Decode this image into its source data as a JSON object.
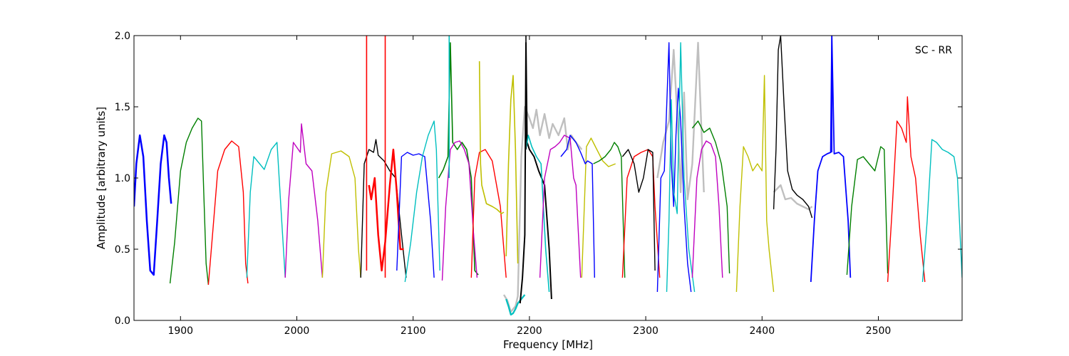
{
  "chart_data": {
    "type": "line",
    "title": "",
    "annotation": "SC - RR",
    "xlabel": "Frequency [MHz]",
    "ylabel": "Amplitude [arbitrary units]",
    "xlim": [
      1860,
      2572
    ],
    "ylim": [
      0.0,
      2.0
    ],
    "xticks": [
      1900,
      2000,
      2100,
      2200,
      2300,
      2400,
      2500
    ],
    "xtick_labels": [
      "1900",
      "2000",
      "2100",
      "2200",
      "2300",
      "2400",
      "2500"
    ],
    "yticks": [
      0.0,
      0.5,
      1.0,
      1.5,
      2.0
    ],
    "ytick_labels": [
      "0.0",
      "0.5",
      "1.0",
      "1.5",
      "2.0"
    ],
    "grid": false,
    "series": [
      {
        "color": "#bfbfbf",
        "width": 2.4,
        "x": [
          2178,
          2181,
          2184,
          2186,
          2188,
          2190,
          2193,
          2196,
          2200,
          2203,
          2206,
          2209,
          2213,
          2217,
          2220,
          2225,
          2230,
          2233,
          2236,
          2240,
          2245
        ],
        "y": [
          0.18,
          0.14,
          0.06,
          0.08,
          0.1,
          0.17,
          1.15,
          1.5,
          1.42,
          1.35,
          1.48,
          1.3,
          1.45,
          1.28,
          1.38,
          1.3,
          1.42,
          1.2,
          1.3,
          1.25,
          1.2
        ]
      },
      {
        "color": "#bfbfbf",
        "width": 2.4,
        "x": [
          2310,
          2315,
          2320,
          2324,
          2328,
          2330,
          2333,
          2336,
          2340,
          2345,
          2350
        ],
        "y": [
          1.0,
          1.25,
          1.4,
          1.9,
          1.3,
          0.9,
          1.6,
          0.85,
          1.1,
          1.95,
          0.9
        ]
      },
      {
        "color": "#bfbfbf",
        "width": 2.4,
        "x": [
          2410,
          2416,
          2420,
          2425,
          2430,
          2435,
          2440,
          2443
        ],
        "y": [
          0.9,
          0.95,
          0.85,
          0.86,
          0.82,
          0.8,
          0.78,
          0.8
        ]
      },
      {
        "color": "#0000ff",
        "width": 2.5,
        "x": [
          1860,
          1862,
          1865,
          1868,
          1871,
          1874,
          1877,
          1880,
          1883,
          1886,
          1888,
          1890,
          1892
        ],
        "y": [
          0.8,
          1.1,
          1.3,
          1.15,
          0.7,
          0.35,
          0.32,
          0.7,
          1.1,
          1.3,
          1.25,
          1.0,
          0.82
        ]
      },
      {
        "color": "#007f00",
        "width": 1.4,
        "x": [
          1891,
          1895,
          1900,
          1905,
          1910,
          1915,
          1918,
          1920,
          1922,
          1924
        ],
        "y": [
          0.26,
          0.55,
          1.05,
          1.25,
          1.35,
          1.42,
          1.4,
          0.9,
          0.4,
          0.25
        ]
      },
      {
        "color": "#ff0000",
        "width": 1.4,
        "x": [
          1924,
          1928,
          1932,
          1938,
          1944,
          1950,
          1954,
          1956,
          1958
        ],
        "y": [
          0.25,
          0.65,
          1.05,
          1.2,
          1.26,
          1.22,
          0.9,
          0.4,
          0.26
        ]
      },
      {
        "color": "#00bfbf",
        "width": 1.4,
        "x": [
          1957,
          1960,
          1963,
          1968,
          1972,
          1978,
          1983,
          1987,
          1990
        ],
        "y": [
          0.3,
          0.9,
          1.15,
          1.1,
          1.06,
          1.2,
          1.25,
          0.7,
          0.3
        ]
      },
      {
        "color": "#bf00bf",
        "width": 1.4,
        "x": [
          1990,
          1993,
          1997,
          2003,
          2004,
          2008,
          2013,
          2018,
          2022
        ],
        "y": [
          0.3,
          0.85,
          1.25,
          1.18,
          1.38,
          1.1,
          1.05,
          0.7,
          0.3
        ]
      },
      {
        "color": "#bfbf00",
        "width": 1.4,
        "x": [
          2022,
          2025,
          2030,
          2038,
          2045,
          2050,
          2053,
          2055
        ],
        "y": [
          0.3,
          0.9,
          1.17,
          1.19,
          1.15,
          1.0,
          0.5,
          0.3
        ]
      },
      {
        "color": "#000000",
        "width": 1.4,
        "x": [
          2055,
          2058,
          2062,
          2066,
          2068,
          2070,
          2075,
          2080,
          2085,
          2090,
          2094
        ],
        "y": [
          0.3,
          1.1,
          1.2,
          1.18,
          1.27,
          1.16,
          1.12,
          1.05,
          1.0,
          0.6,
          0.3
        ]
      },
      {
        "color": "#ff0000",
        "width": 2.5,
        "x": [
          2062,
          2064,
          2067,
          2070,
          2073,
          2076,
          2080,
          2083,
          2086,
          2089,
          2092
        ],
        "y": [
          0.95,
          0.85,
          1.0,
          0.6,
          0.35,
          0.55,
          0.95,
          1.2,
          0.9,
          0.5,
          0.5
        ]
      },
      {
        "color": "#0000ff",
        "width": 1.4,
        "x": [
          2086,
          2090,
          2095,
          2100,
          2105,
          2110,
          2115,
          2118
        ],
        "y": [
          0.35,
          1.15,
          1.18,
          1.16,
          1.17,
          1.15,
          0.7,
          0.3
        ]
      },
      {
        "color": "#00bfbf",
        "width": 1.4,
        "x": [
          2093,
          2098,
          2103,
          2108,
          2113,
          2118,
          2120,
          2123
        ],
        "y": [
          0.27,
          0.55,
          0.9,
          1.15,
          1.3,
          1.4,
          1.2,
          0.35
        ]
      },
      {
        "color": "#007f00",
        "width": 1.6,
        "x": [
          2122,
          2126,
          2130,
          2132,
          2134,
          2138,
          2142,
          2146,
          2150,
          2153,
          2156
        ],
        "y": [
          1.0,
          1.06,
          1.15,
          1.95,
          1.25,
          1.2,
          1.25,
          1.2,
          1.0,
          0.35,
          0.32
        ]
      },
      {
        "color": "#bf00bf",
        "width": 1.4,
        "x": [
          2125,
          2128,
          2132,
          2136,
          2140,
          2144,
          2148,
          2152,
          2155
        ],
        "y": [
          0.28,
          0.8,
          1.2,
          1.25,
          1.26,
          1.2,
          1.1,
          0.6,
          0.3
        ]
      },
      {
        "color": "#ff0000",
        "width": 1.4,
        "x": [
          2150,
          2153,
          2157,
          2162,
          2168,
          2175,
          2180
        ],
        "y": [
          0.3,
          1.0,
          1.18,
          1.2,
          1.12,
          0.8,
          0.3
        ]
      },
      {
        "color": "#bfbf00",
        "width": 1.6,
        "x": [
          2157,
          2158,
          2159,
          2163,
          2168,
          2172,
          2176,
          2178
        ],
        "y": [
          1.82,
          1.1,
          0.95,
          0.82,
          0.8,
          0.78,
          0.75,
          0.76
        ]
      },
      {
        "color": "#bfbf00",
        "width": 1.6,
        "x": [
          2180,
          2182,
          2184,
          2186,
          2188,
          2190
        ],
        "y": [
          0.45,
          1.1,
          1.55,
          1.72,
          1.2,
          0.4
        ]
      },
      {
        "color": "#00bfbf",
        "width": 2.3,
        "x": [
          2180,
          2182,
          2184,
          2186,
          2188,
          2190,
          2193,
          2196
        ],
        "y": [
          0.15,
          0.1,
          0.04,
          0.05,
          0.08,
          0.12,
          0.15,
          0.18
        ]
      },
      {
        "color": "#000000",
        "width": 2.0,
        "x": [
          2192,
          2194,
          2196,
          2197,
          2198,
          2200,
          2204,
          2208,
          2213,
          2217,
          2219
        ],
        "y": [
          0.12,
          0.3,
          0.6,
          1.95,
          1.25,
          1.2,
          1.15,
          1.05,
          0.95,
          0.5,
          0.15
        ]
      },
      {
        "color": "#00bfbf",
        "width": 1.6,
        "x": [
          2197,
          2199,
          2202,
          2206,
          2210,
          2214,
          2217
        ],
        "y": [
          1.2,
          1.3,
          1.22,
          1.15,
          1.1,
          0.5,
          0.2
        ]
      },
      {
        "color": "#bfbf00",
        "width": 1.4,
        "x": [
          2245,
          2249,
          2253,
          2258,
          2263,
          2268,
          2274
        ],
        "y": [
          0.3,
          1.22,
          1.28,
          1.2,
          1.12,
          1.08,
          1.1
        ]
      },
      {
        "color": "#bf00bf",
        "width": 1.4,
        "x": [
          2209,
          2213,
          2218,
          2222,
          2226,
          2230,
          2235,
          2238,
          2240,
          2244
        ],
        "y": [
          0.3,
          1.0,
          1.2,
          1.22,
          1.25,
          1.3,
          1.28,
          1.0,
          0.95,
          0.3
        ]
      },
      {
        "color": "#0000ff",
        "width": 1.4,
        "x": [
          2227,
          2232,
          2235,
          2240,
          2244,
          2248,
          2250,
          2254,
          2256
        ],
        "y": [
          1.15,
          1.2,
          1.3,
          1.25,
          1.18,
          1.1,
          1.12,
          1.1,
          0.3
        ]
      },
      {
        "color": "#007f00",
        "width": 1.4,
        "x": [
          2255,
          2260,
          2265,
          2270,
          2273,
          2276,
          2279,
          2282
        ],
        "y": [
          1.1,
          1.12,
          1.15,
          1.2,
          1.25,
          1.22,
          1.15,
          0.3
        ]
      },
      {
        "color": "#ff0000",
        "width": 1.4,
        "x": [
          2280,
          2284,
          2290,
          2296,
          2302,
          2306,
          2308,
          2312
        ],
        "y": [
          0.3,
          1.0,
          1.15,
          1.18,
          1.2,
          1.15,
          0.8,
          0.3
        ]
      },
      {
        "color": "#000000",
        "width": 1.4,
        "x": [
          2280,
          2285,
          2290,
          2294,
          2298,
          2302,
          2306,
          2308
        ],
        "y": [
          1.15,
          1.2,
          1.1,
          0.9,
          1.0,
          1.2,
          1.18,
          0.35
        ]
      },
      {
        "color": "#0000ff",
        "width": 1.4,
        "x": [
          2310,
          2313,
          2316,
          2320,
          2322,
          2324,
          2326,
          2328,
          2330,
          2333,
          2336,
          2339
        ],
        "y": [
          0.2,
          1.0,
          1.05,
          1.95,
          1.1,
          0.8,
          1.3,
          1.63,
          1.4,
          0.8,
          0.4,
          0.2
        ]
      },
      {
        "color": "#00bfbf",
        "width": 1.4,
        "x": [
          2318,
          2320,
          2322,
          2324,
          2327,
          2330,
          2333,
          2337,
          2342
        ],
        "y": [
          0.2,
          0.7,
          1.55,
          0.9,
          0.75,
          1.95,
          1.0,
          0.5,
          0.2
        ]
      },
      {
        "color": "#bf00bf",
        "width": 1.4,
        "x": [
          2340,
          2344,
          2348,
          2352,
          2356,
          2360,
          2363,
          2366
        ],
        "y": [
          0.3,
          1.0,
          1.2,
          1.26,
          1.24,
          1.15,
          0.8,
          0.3
        ]
      },
      {
        "color": "#007f00",
        "width": 1.4,
        "x": [
          2340,
          2345,
          2350,
          2355,
          2360,
          2365,
          2370,
          2372
        ],
        "y": [
          1.35,
          1.4,
          1.32,
          1.35,
          1.25,
          1.1,
          0.8,
          0.33
        ]
      },
      {
        "color": "#bfbf00",
        "width": 1.4,
        "x": [
          2378,
          2381,
          2384,
          2388,
          2392,
          2396,
          2400,
          2402,
          2404,
          2406,
          2410
        ],
        "y": [
          0.2,
          0.8,
          1.22,
          1.15,
          1.05,
          1.1,
          1.05,
          1.72,
          0.7,
          0.5,
          0.2
        ]
      },
      {
        "color": "#000000",
        "width": 1.4,
        "x": [
          2410,
          2412,
          2414,
          2416,
          2419,
          2422,
          2426,
          2430,
          2435,
          2440,
          2443
        ],
        "y": [
          0.78,
          1.2,
          1.9,
          2.0,
          1.5,
          1.05,
          0.92,
          0.88,
          0.85,
          0.8,
          0.72
        ]
      },
      {
        "color": "#0000ff",
        "width": 1.8,
        "x": [
          2442,
          2445,
          2448,
          2452,
          2456,
          2459,
          2460,
          2462,
          2466,
          2470,
          2474,
          2476
        ],
        "y": [
          0.27,
          0.7,
          1.05,
          1.15,
          1.17,
          1.18,
          2.0,
          1.17,
          1.18,
          1.15,
          0.7,
          0.3
        ]
      },
      {
        "color": "#007f00",
        "width": 1.4,
        "x": [
          2473,
          2477,
          2482,
          2487,
          2492,
          2497,
          2502,
          2505,
          2508
        ],
        "y": [
          0.32,
          0.8,
          1.13,
          1.15,
          1.1,
          1.05,
          1.22,
          1.2,
          0.33
        ]
      },
      {
        "color": "#ff0000",
        "width": 1.4,
        "x": [
          2508,
          2512,
          2516,
          2520,
          2524,
          2525,
          2528,
          2532,
          2536,
          2540
        ],
        "y": [
          0.27,
          0.8,
          1.4,
          1.35,
          1.25,
          1.57,
          1.15,
          1.0,
          0.6,
          0.27
        ]
      },
      {
        "color": "#00bfbf",
        "width": 1.4,
        "x": [
          2538,
          2542,
          2546,
          2550,
          2555,
          2560,
          2565,
          2568,
          2572
        ],
        "y": [
          0.27,
          0.7,
          1.27,
          1.25,
          1.2,
          1.18,
          1.15,
          1.0,
          0.3
        ]
      }
    ],
    "spikes": [
      {
        "color": "#ff0000",
        "x": 2060,
        "y0": 0.35,
        "y1": 2.0
      },
      {
        "color": "#ff0000",
        "x": 2076,
        "y0": 0.3,
        "y1": 2.0
      },
      {
        "color": "#00bfbf",
        "x": 2131,
        "y0": 1.0,
        "y1": 2.0
      },
      {
        "color": "#000000",
        "x": 2197,
        "y0": 1.2,
        "y1": 2.0
      },
      {
        "color": "#0000ff",
        "x": 2460,
        "y0": 1.18,
        "y1": 2.0
      }
    ]
  }
}
